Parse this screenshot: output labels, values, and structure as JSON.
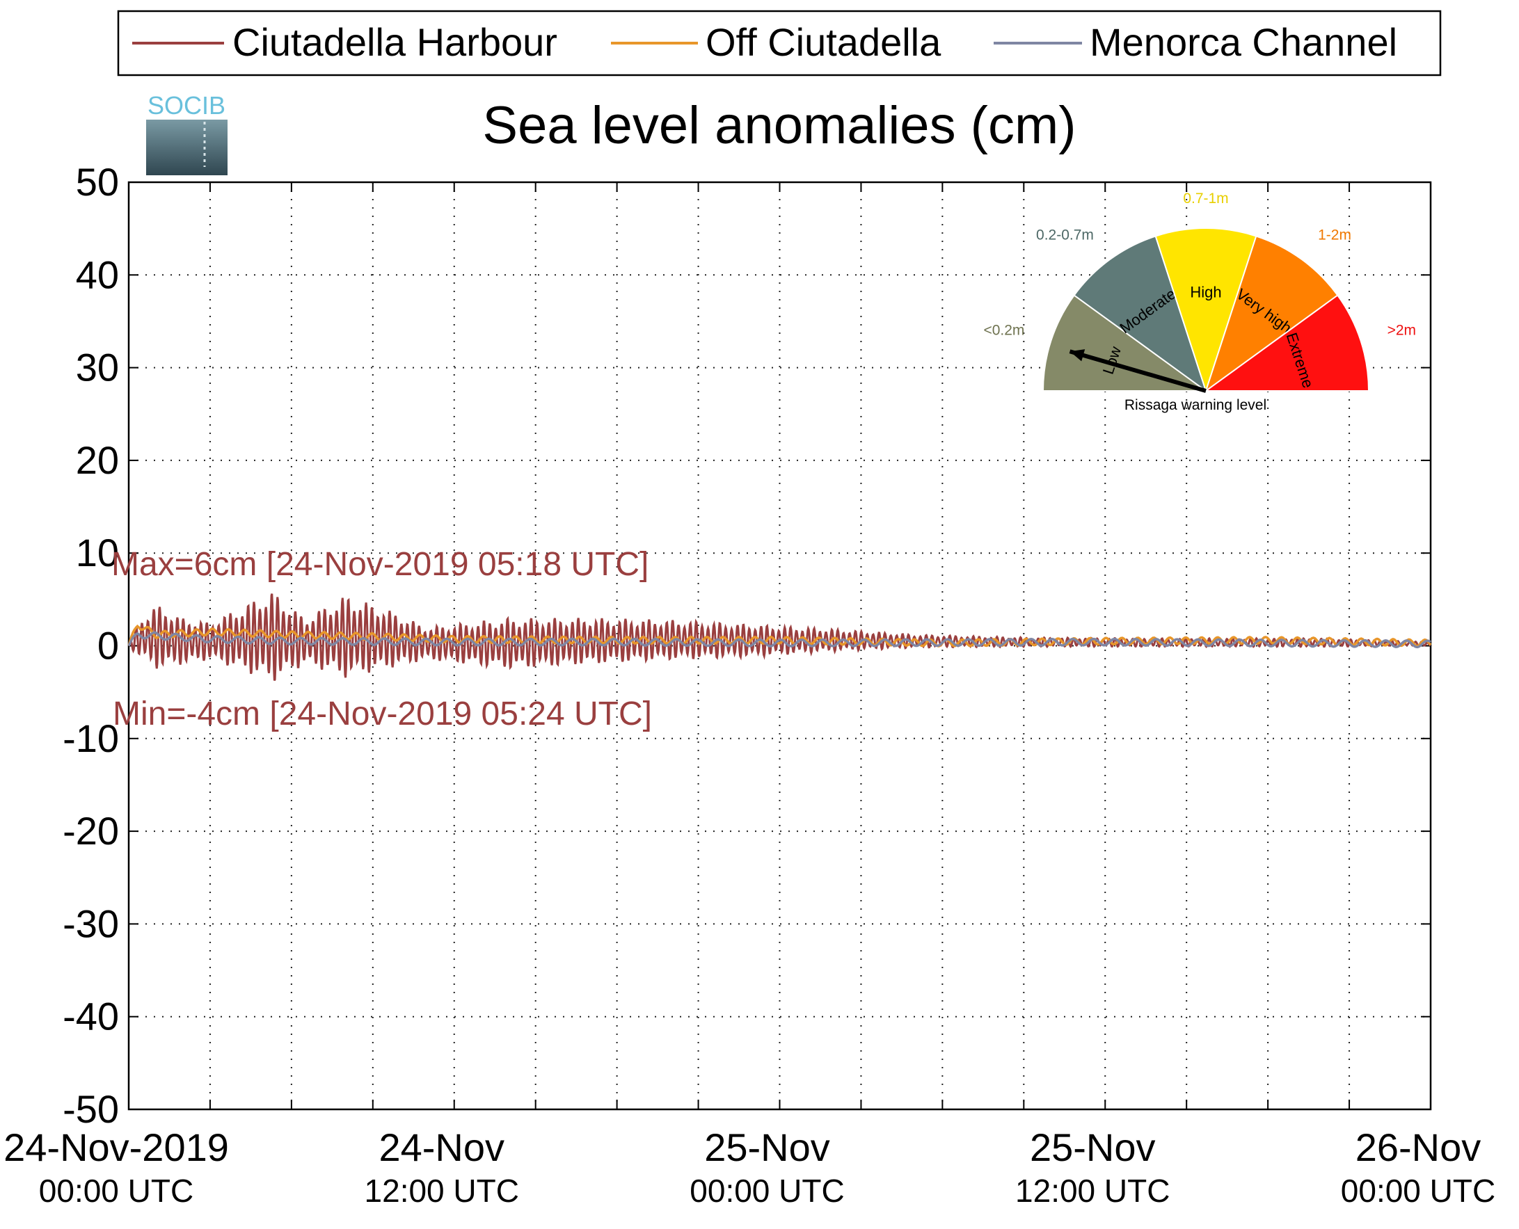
{
  "logo": {
    "text": "SOCIB"
  },
  "chart_data": {
    "type": "line",
    "title": "Sea level anomalies (cm)",
    "xlabel": "",
    "ylabel": "",
    "ylim": [
      -50,
      50
    ],
    "yticks": [
      50,
      40,
      30,
      20,
      10,
      0,
      -10,
      -20,
      -30,
      -40,
      -50
    ],
    "xlim_hours": [
      0,
      48
    ],
    "x_major_tick_hours": [
      0,
      12,
      24,
      36,
      48
    ],
    "x_minor_tick_hours": [
      3,
      6,
      9,
      15,
      18,
      21,
      27,
      30,
      33,
      39,
      42,
      45
    ],
    "xtick_labels": [
      {
        "date": "24-Nov-2019",
        "time": "00:00 UTC"
      },
      {
        "date": "24-Nov",
        "time": "12:00 UTC"
      },
      {
        "date": "25-Nov",
        "time": "00:00 UTC"
      },
      {
        "date": "25-Nov",
        "time": "12:00 UTC"
      },
      {
        "date": "26-Nov",
        "time": "00:00 UTC"
      }
    ],
    "grid": true,
    "legend_position": "top",
    "series": [
      {
        "name": "Ciutadella Harbour",
        "color": "#9a3f3f",
        "envelope": [
          {
            "x": "24-Nov-2019 00:00",
            "upper": 0.1,
            "lower": -0.1
          },
          {
            "x": "24-Nov-2019 00:20",
            "upper": 2.5,
            "lower": -1.0
          },
          {
            "x": "24-Nov-2019 01:00",
            "upper": 4.5,
            "lower": -2.5
          },
          {
            "x": "24-Nov-2019 02:00",
            "upper": 3.0,
            "lower": -2.0
          },
          {
            "x": "24-Nov-2019 03:00",
            "upper": 2.5,
            "lower": -1.5
          },
          {
            "x": "24-Nov-2019 04:00",
            "upper": 4.0,
            "lower": -2.5
          },
          {
            "x": "24-Nov-2019 05:18",
            "upper": 6.0,
            "lower": -4.0
          },
          {
            "x": "24-Nov-2019 06:30",
            "upper": 3.0,
            "lower": -2.0
          },
          {
            "x": "24-Nov-2019 08:00",
            "upper": 5.5,
            "lower": -3.5
          },
          {
            "x": "24-Nov-2019 09:30",
            "upper": 4.0,
            "lower": -2.5
          },
          {
            "x": "24-Nov-2019 11:00",
            "upper": 2.0,
            "lower": -1.5
          },
          {
            "x": "24-Nov-2019 14:00",
            "upper": 3.0,
            "lower": -2.5
          },
          {
            "x": "24-Nov-2019 17:00",
            "upper": 3.0,
            "lower": -2.0
          },
          {
            "x": "24-Nov-2019 20:00",
            "upper": 2.8,
            "lower": -1.5
          },
          {
            "x": "24-Nov-2019 23:00",
            "upper": 2.3,
            "lower": -1.2
          },
          {
            "x": "25-Nov-2019 02:00",
            "upper": 1.8,
            "lower": -0.6
          },
          {
            "x": "25-Nov-2019 05:00",
            "upper": 1.2,
            "lower": -0.2
          },
          {
            "x": "25-Nov-2019 09:00",
            "upper": 0.9,
            "lower": -0.1
          },
          {
            "x": "25-Nov-2019 14:00",
            "upper": 0.8,
            "lower": -0.1
          },
          {
            "x": "25-Nov-2019 20:00",
            "upper": 0.8,
            "lower": -0.1
          },
          {
            "x": "26-Nov-2019 00:00",
            "upper": 0.4,
            "lower": 0.0
          }
        ]
      },
      {
        "name": "Off Ciutadella",
        "color": "#e8962a",
        "points": [
          {
            "x": "24-Nov-2019 00:00",
            "y": 0.0
          },
          {
            "x": "24-Nov-2019 00:20",
            "y": 2.3
          },
          {
            "x": "24-Nov-2019 01:00",
            "y": 1.2
          },
          {
            "x": "24-Nov-2019 03:00",
            "y": 1.5
          },
          {
            "x": "24-Nov-2019 06:00",
            "y": 1.2
          },
          {
            "x": "24-Nov-2019 09:00",
            "y": 1.0
          },
          {
            "x": "24-Nov-2019 12:00",
            "y": 0.7
          },
          {
            "x": "24-Nov-2019 18:00",
            "y": 0.6
          },
          {
            "x": "25-Nov-2019 00:00",
            "y": 0.6
          },
          {
            "x": "25-Nov-2019 06:00",
            "y": 0.3
          },
          {
            "x": "25-Nov-2019 12:00",
            "y": 0.5
          },
          {
            "x": "25-Nov-2019 18:00",
            "y": 0.6
          },
          {
            "x": "26-Nov-2019 00:00",
            "y": 0.3
          }
        ]
      },
      {
        "name": "Menorca Channel",
        "color": "#7f86a3",
        "points": [
          {
            "x": "24-Nov-2019 00:00",
            "y": 0.0
          },
          {
            "x": "24-Nov-2019 00:20",
            "y": 1.2
          },
          {
            "x": "24-Nov-2019 03:00",
            "y": 0.7
          },
          {
            "x": "24-Nov-2019 06:00",
            "y": 0.5
          },
          {
            "x": "24-Nov-2019 12:00",
            "y": 0.4
          },
          {
            "x": "24-Nov-2019 18:00",
            "y": 0.4
          },
          {
            "x": "25-Nov-2019 00:00",
            "y": 0.3
          },
          {
            "x": "25-Nov-2019 12:00",
            "y": 0.4
          },
          {
            "x": "26-Nov-2019 00:00",
            "y": 0.2
          }
        ]
      }
    ],
    "annotations": [
      {
        "text": "Max=6cm [24-Nov-2019 05:18 UTC]",
        "color": "#9a3f3f"
      },
      {
        "text": "Min=-4cm [24-Nov-2019 05:24 UTC]",
        "color": "#9a3f3f"
      }
    ]
  },
  "gauge": {
    "title": "Rissaga warning level",
    "needle_level": "Low",
    "needle_fraction": 0.09,
    "segments": [
      {
        "label": "Low",
        "range": "<0.2m",
        "color": "#858a68",
        "range_color": "#6f7350"
      },
      {
        "label": "Moderate",
        "range": "0.2-0.7m",
        "color": "#5f7a78",
        "range_color": "#4d6866"
      },
      {
        "label": "High",
        "range": "0.7-1m",
        "color": "#ffe500",
        "range_color": "#e8cf00"
      },
      {
        "label": "Very high",
        "range": "1-2m",
        "color": "#ff8000",
        "range_color": "#f07800"
      },
      {
        "label": "Extreme",
        "range": ">2m",
        "color": "#ff1010",
        "range_color": "#ee1111"
      }
    ]
  }
}
